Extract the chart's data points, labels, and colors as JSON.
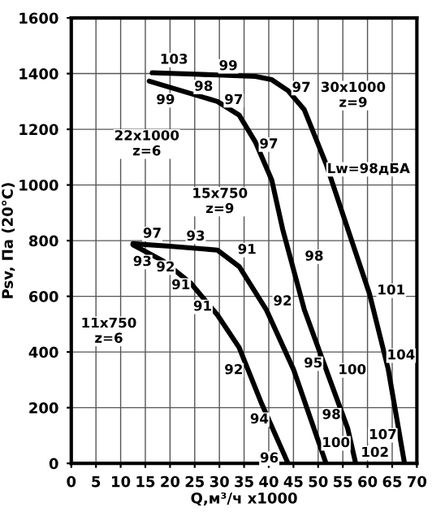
{
  "chart_data": {
    "type": "line",
    "xlabel": "Q,м³/ч x1000",
    "ylabel": "Psv, Па (20°C)",
    "xlim": [
      0,
      70
    ],
    "ylim": [
      0,
      1600
    ],
    "xticks": [
      0,
      5,
      10,
      15,
      20,
      25,
      30,
      35,
      40,
      45,
      50,
      55,
      60,
      65,
      70
    ],
    "yticks": [
      0,
      200,
      400,
      600,
      800,
      1000,
      1200,
      1400,
      1600
    ],
    "grid": true,
    "marker": "none",
    "line_style": "solid",
    "series": [
      {
        "color": "#000000",
        "x": [
          16.4,
          25,
          37.3,
          40.6,
          43.9,
          47.2,
          51.6,
          56,
          60.4,
          64.2,
          67.5
        ],
        "values": [
          1403,
          1398,
          1390,
          1378,
          1339,
          1270,
          1076,
          842,
          609,
          338,
          0
        ]
      },
      {
        "color": "#000000",
        "x": [
          15.8,
          22,
          29.6,
          34,
          37.3,
          40.6,
          42.8,
          47.2,
          51.6,
          56,
          57.6
        ],
        "values": [
          1373,
          1340,
          1300,
          1251,
          1154,
          1018,
          842,
          552,
          338,
          125,
          0
        ]
      },
      {
        "color": "#000000",
        "x": [
          12.5,
          20,
          29.6,
          34,
          39.5,
          45,
          51.6
        ],
        "values": [
          789,
          780,
          766,
          707,
          552,
          338,
          0
        ]
      },
      {
        "color": "#000000",
        "x": [
          12.5,
          18.6,
          24.1,
          29.6,
          34,
          38.4,
          43.9
        ],
        "values": [
          785,
          727,
          649,
          533,
          416,
          221,
          0
        ]
      }
    ],
    "annotations": [
      {
        "text": "103",
        "x": 20.8,
        "y": 1449
      },
      {
        "text": "99",
        "x": 31.8,
        "y": 1426
      },
      {
        "text": "97",
        "x": 46.6,
        "y": 1348
      },
      {
        "text": "98",
        "x": 26.8,
        "y": 1352
      },
      {
        "text": "99",
        "x": 19.1,
        "y": 1304
      },
      {
        "text": "97",
        "x": 32.9,
        "y": 1304
      },
      {
        "text": "97",
        "x": 40,
        "y": 1145
      },
      {
        "text": "30x1000\nz=9",
        "x": 57.1,
        "y": 1321
      },
      {
        "text": "22x1000\nz=6",
        "x": 15.3,
        "y": 1147
      },
      "Lw=98дБА",
      {
        "text": "15x750\nz=9",
        "x": 30.1,
        "y": 940
      },
      {
        "text": "97",
        "x": 16.4,
        "y": 824
      },
      {
        "text": "93",
        "x": 25.2,
        "y": 814
      },
      {
        "text": "91",
        "x": 35.6,
        "y": 766
      },
      {
        "text": "93",
        "x": 14.4,
        "y": 723
      },
      {
        "text": "92",
        "x": 19.1,
        "y": 703
      },
      {
        "text": "91",
        "x": 22.2,
        "y": 639
      },
      {
        "text": "91",
        "x": 26.6,
        "y": 562
      },
      {
        "text": "98",
        "x": 49.2,
        "y": 742
      },
      {
        "text": "92",
        "x": 42.8,
        "y": 581
      },
      {
        "text": "101",
        "x": 64.8,
        "y": 620
      },
      {
        "text": "104",
        "x": 66.8,
        "y": 387
      },
      {
        "text": "11x750\nz=6",
        "x": 7.6,
        "y": 474
      },
      {
        "text": "92",
        "x": 32.9,
        "y": 334
      },
      {
        "text": "95",
        "x": 49,
        "y": 358
      },
      {
        "text": "100",
        "x": 56.9,
        "y": 334
      },
      {
        "text": "94",
        "x": 38.1,
        "y": 157
      },
      {
        "text": "98",
        "x": 52.7,
        "y": 173
      },
      {
        "text": "100",
        "x": 53.6,
        "y": 72
      },
      {
        "text": "107",
        "x": 63.1,
        "y": 101
      },
      {
        "text": "102",
        "x": 61.5,
        "y": 37
      },
      {
        "text": "96",
        "x": 40.1,
        "y": 17
      }
    ]
  }
}
